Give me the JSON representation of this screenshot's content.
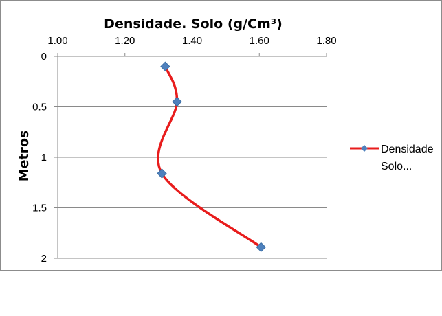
{
  "chart_data": {
    "type": "line",
    "title": "Densidade. Solo (g/Cm³)",
    "xlabel": "",
    "ylabel": "Metros",
    "x_axis_position": "top",
    "y_axis_reversed": true,
    "xlim": [
      1.0,
      1.8
    ],
    "ylim": [
      0,
      2
    ],
    "x_ticks": [
      "1.00",
      "1.20",
      "1.40",
      "1.60",
      "1.80"
    ],
    "y_ticks": [
      "0",
      "0.5",
      "1",
      "1.5",
      "2"
    ],
    "grid": {
      "horizontal": true,
      "vertical": false
    },
    "legend_position": "right",
    "series": [
      {
        "name": "Densidade Solo...",
        "legend_line1": "Densidade",
        "legend_line2": "Solo...",
        "line_color": "#e81c1c",
        "marker_color": "#4f81bd",
        "marker": "diamond",
        "smooth": true,
        "points": [
          {
            "x": 1.32,
            "y": 0.1
          },
          {
            "x": 1.355,
            "y": 0.45
          },
          {
            "x": 1.31,
            "y": 1.16
          },
          {
            "x": 1.605,
            "y": 1.89
          }
        ]
      }
    ]
  }
}
